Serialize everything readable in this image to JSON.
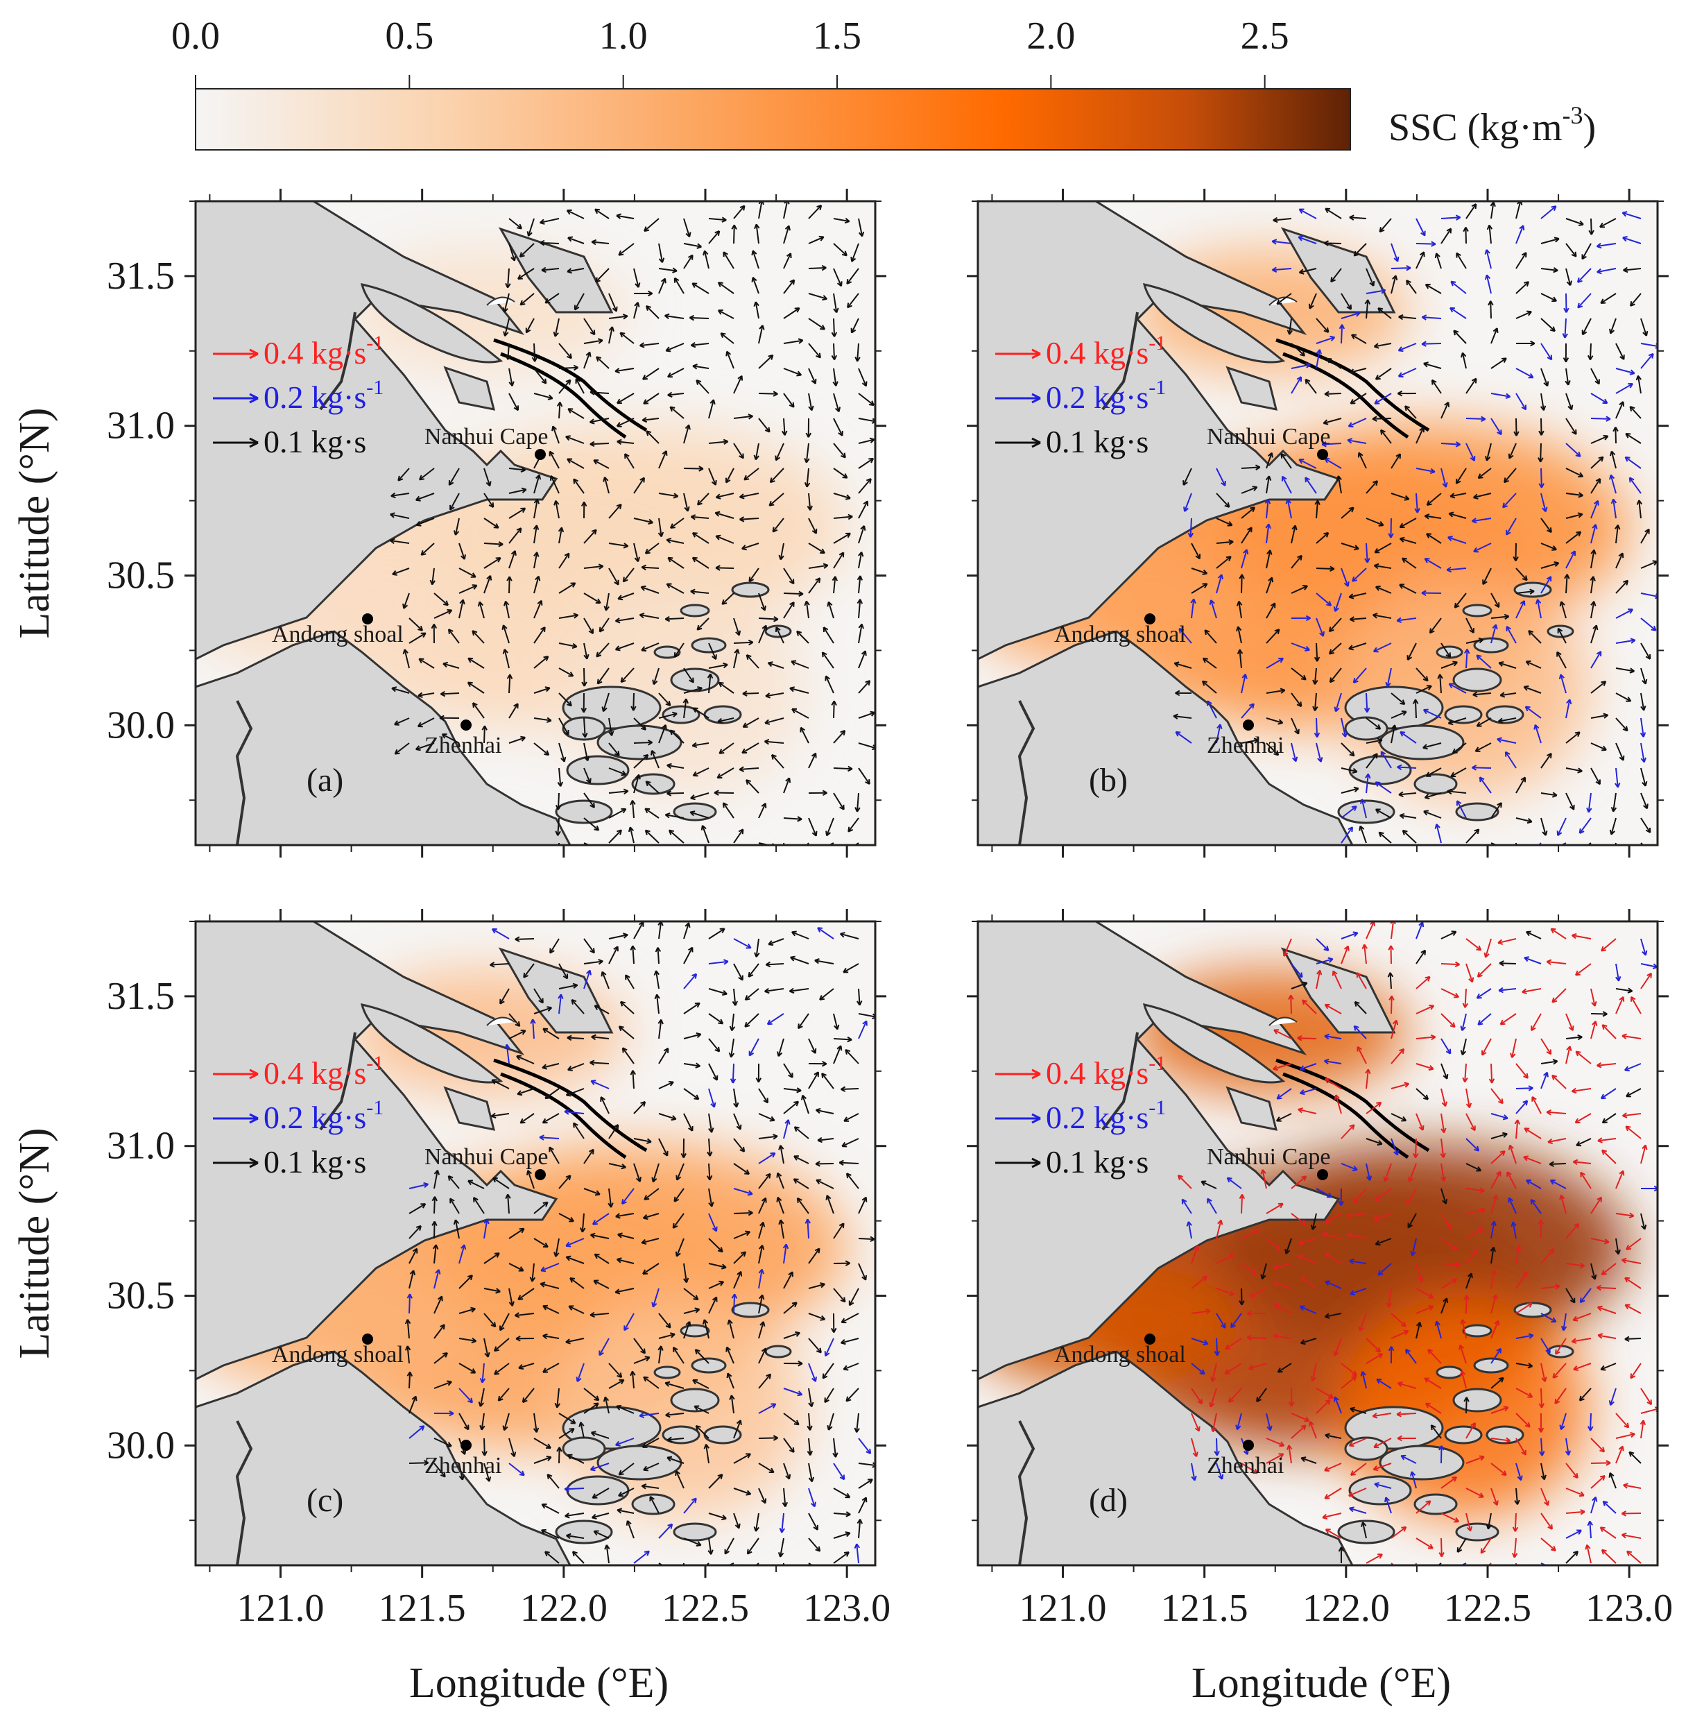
{
  "colorbar": {
    "ticks": [
      "0.0",
      "0.5",
      "1.0",
      "1.5",
      "2.0",
      "2.5"
    ],
    "range": [
      0,
      2.7
    ],
    "label": "SSC (kg·m",
    "label_sup": "-3",
    "label_end": ")",
    "colors": [
      "#f5f5f5",
      "#fbd2ad",
      "#fd9848",
      "#ff6a00",
      "#c54d09",
      "#5e2206"
    ]
  },
  "axes": {
    "lat_label": "Latitude (°N)",
    "lon_label": "Longitude (°E)",
    "lat_ticks": [
      "31.5",
      "31.0",
      "30.5",
      "30.0"
    ],
    "lon_ticks": [
      "121.0",
      "121.5",
      "122.0",
      "122.5",
      "123.0"
    ]
  },
  "legend": {
    "items": [
      {
        "value": "0.4 kg·s",
        "sup": "-1",
        "color": "#ff2020"
      },
      {
        "value": "0.2 kg·s",
        "sup": "-1",
        "color": "#2020e0"
      },
      {
        "value": "0.1 kg·s",
        "sup": "",
        "color": "#111111"
      }
    ]
  },
  "places": {
    "nanhui": "Nanhui Cape",
    "andong": "Andong shoal",
    "zhenhai": "Zhenhai"
  },
  "panels": [
    {
      "label": "(a)",
      "intensity": 0.16
    },
    {
      "label": "(b)",
      "intensity": 0.42
    },
    {
      "label": "(c)",
      "intensity": 0.36
    },
    {
      "label": "(d)",
      "intensity": 0.88
    }
  ],
  "land_color": "#d6d6d6",
  "coast_color": "#333333"
}
